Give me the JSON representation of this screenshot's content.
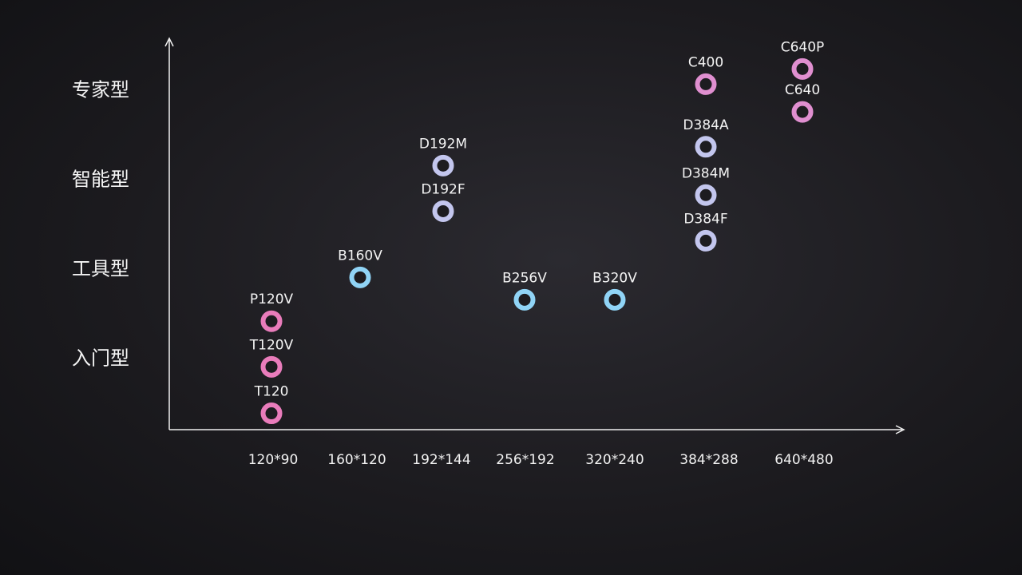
{
  "chart_data": {
    "type": "scatter",
    "title": "",
    "xlabel": "",
    "ylabel": "",
    "categories": [
      "120*90",
      "160*120",
      "192*144",
      "256*192",
      "320*240",
      "384*288",
      "640*480"
    ],
    "y_tiers": [
      "入门型",
      "工具型",
      "智能型",
      "专家型"
    ],
    "ylim": [
      -0.85,
      3.9
    ],
    "colors": {
      "pink": "#e97cbb",
      "magenta": "#e08fd0",
      "lavender": "#c3c6ee",
      "blue": "#90d4f6"
    },
    "points": [
      {
        "label": "T120",
        "x": 0,
        "y": -0.63,
        "color": "pink"
      },
      {
        "label": "T120V",
        "x": 0,
        "y": -0.11,
        "color": "pink"
      },
      {
        "label": "P120V",
        "x": 0,
        "y": 0.4,
        "color": "pink"
      },
      {
        "label": "B160V",
        "x": 1,
        "y": 0.89,
        "color": "blue"
      },
      {
        "label": "D192F",
        "x": 2,
        "y": 1.63,
        "color": "lavender"
      },
      {
        "label": "D192M",
        "x": 2,
        "y": 2.14,
        "color": "lavender"
      },
      {
        "label": "B256V",
        "x": 3,
        "y": 0.64,
        "color": "blue"
      },
      {
        "label": "B320V",
        "x": 4,
        "y": 0.64,
        "color": "blue"
      },
      {
        "label": "D384F",
        "x": 5,
        "y": 1.3,
        "color": "lavender"
      },
      {
        "label": "D384M",
        "x": 5,
        "y": 1.81,
        "color": "lavender"
      },
      {
        "label": "D384A",
        "x": 5,
        "y": 2.35,
        "color": "lavender"
      },
      {
        "label": "C400",
        "x": 5,
        "y": 3.05,
        "color": "magenta"
      },
      {
        "label": "C640",
        "x": 6,
        "y": 2.74,
        "color": "magenta"
      },
      {
        "label": "C640P",
        "x": 6,
        "y": 3.22,
        "color": "magenta"
      }
    ]
  }
}
